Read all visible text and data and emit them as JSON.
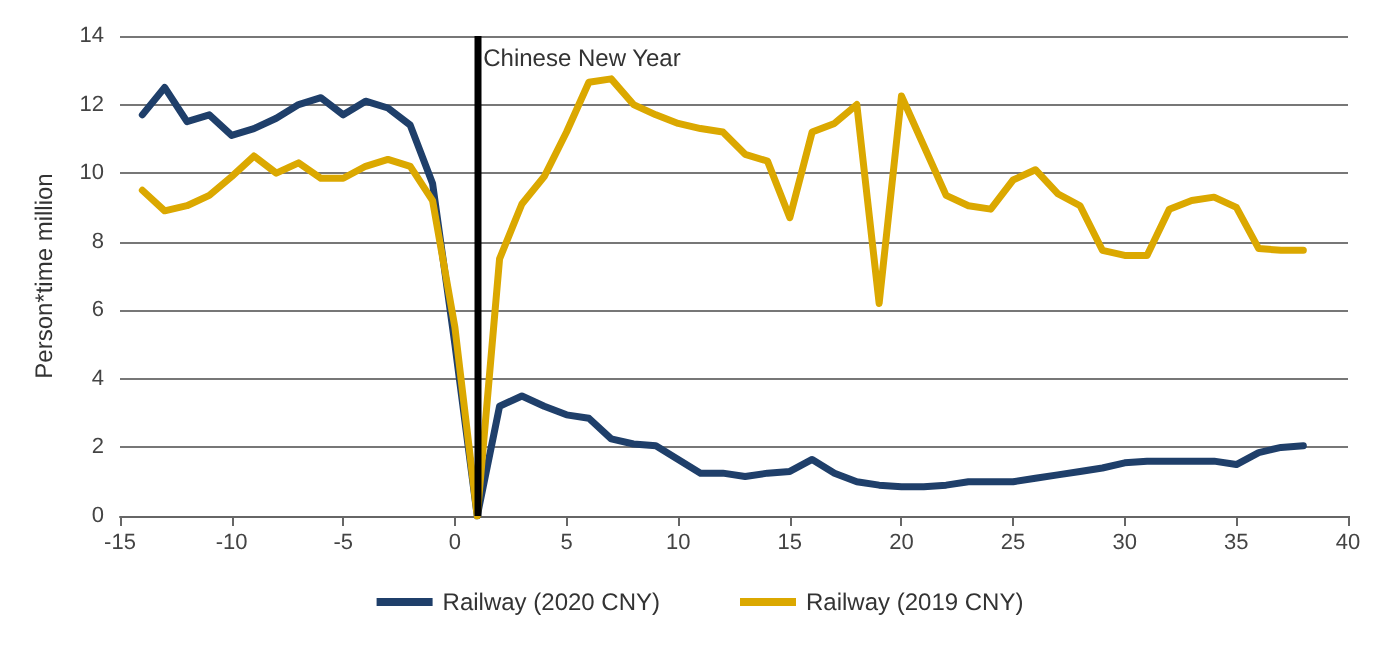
{
  "chart_data": {
    "type": "line",
    "ylabel": "Person*time million",
    "x": [
      -14,
      -13,
      -12,
      -11,
      -10,
      -9,
      -8,
      -7,
      -6,
      -5,
      -4,
      -3,
      -2,
      -1,
      0,
      1,
      2,
      3,
      4,
      5,
      6,
      7,
      8,
      9,
      10,
      11,
      12,
      13,
      14,
      15,
      16,
      17,
      18,
      19,
      20,
      21,
      22,
      23,
      24,
      25,
      26,
      27,
      28,
      29,
      30,
      31,
      32,
      33,
      34,
      35,
      36,
      37,
      38
    ],
    "series": [
      {
        "name": "Railway (2020 CNY)",
        "color": "#1f3f6a",
        "values": [
          11.7,
          12.5,
          11.5,
          11.7,
          11.1,
          11.3,
          11.6,
          12.0,
          12.2,
          11.7,
          12.1,
          11.9,
          11.4,
          9.7,
          5.0,
          0,
          3.2,
          3.5,
          3.2,
          2.95,
          2.85,
          2.25,
          2.1,
          2.05,
          1.65,
          1.25,
          1.25,
          1.15,
          1.25,
          1.3,
          1.65,
          1.25,
          1.0,
          0.9,
          0.85,
          0.85,
          0.9,
          1.0,
          1.0,
          1.0,
          1.1,
          1.2,
          1.3,
          1.4,
          1.55,
          1.6,
          1.6,
          1.6,
          1.6,
          1.5,
          1.85,
          2.0,
          2.05
        ]
      },
      {
        "name": "Railway (2019 CNY)",
        "color": "#dba800",
        "values": [
          9.5,
          8.9,
          9.05,
          9.35,
          9.9,
          10.5,
          10.0,
          10.3,
          9.85,
          9.85,
          10.2,
          10.4,
          10.2,
          9.2,
          5.5,
          0,
          7.5,
          9.1,
          9.9,
          11.2,
          12.65,
          12.75,
          12.0,
          11.7,
          11.45,
          11.3,
          11.2,
          10.55,
          10.35,
          8.7,
          11.2,
          11.45,
          12.0,
          6.2,
          12.25,
          10.8,
          9.35,
          9.05,
          8.95,
          9.8,
          10.1,
          9.4,
          9.05,
          7.75,
          7.6,
          7.6,
          8.95,
          9.2,
          9.3,
          9.0,
          7.8,
          7.75,
          7.75
        ]
      }
    ],
    "xlim": [
      -15,
      40
    ],
    "xticks": [
      -15,
      -10,
      -5,
      0,
      5,
      10,
      15,
      20,
      25,
      30,
      35,
      40
    ],
    "ylim": [
      0,
      14
    ],
    "yticks": [
      0,
      2,
      4,
      6,
      8,
      10,
      12,
      14
    ],
    "ref_lines": [
      {
        "axis": "x",
        "value": 1,
        "label": "Chinese New Year",
        "color": "#000000"
      }
    ],
    "grid": "y",
    "legend": "bottom",
    "marker": "none",
    "line_style": "solid"
  }
}
